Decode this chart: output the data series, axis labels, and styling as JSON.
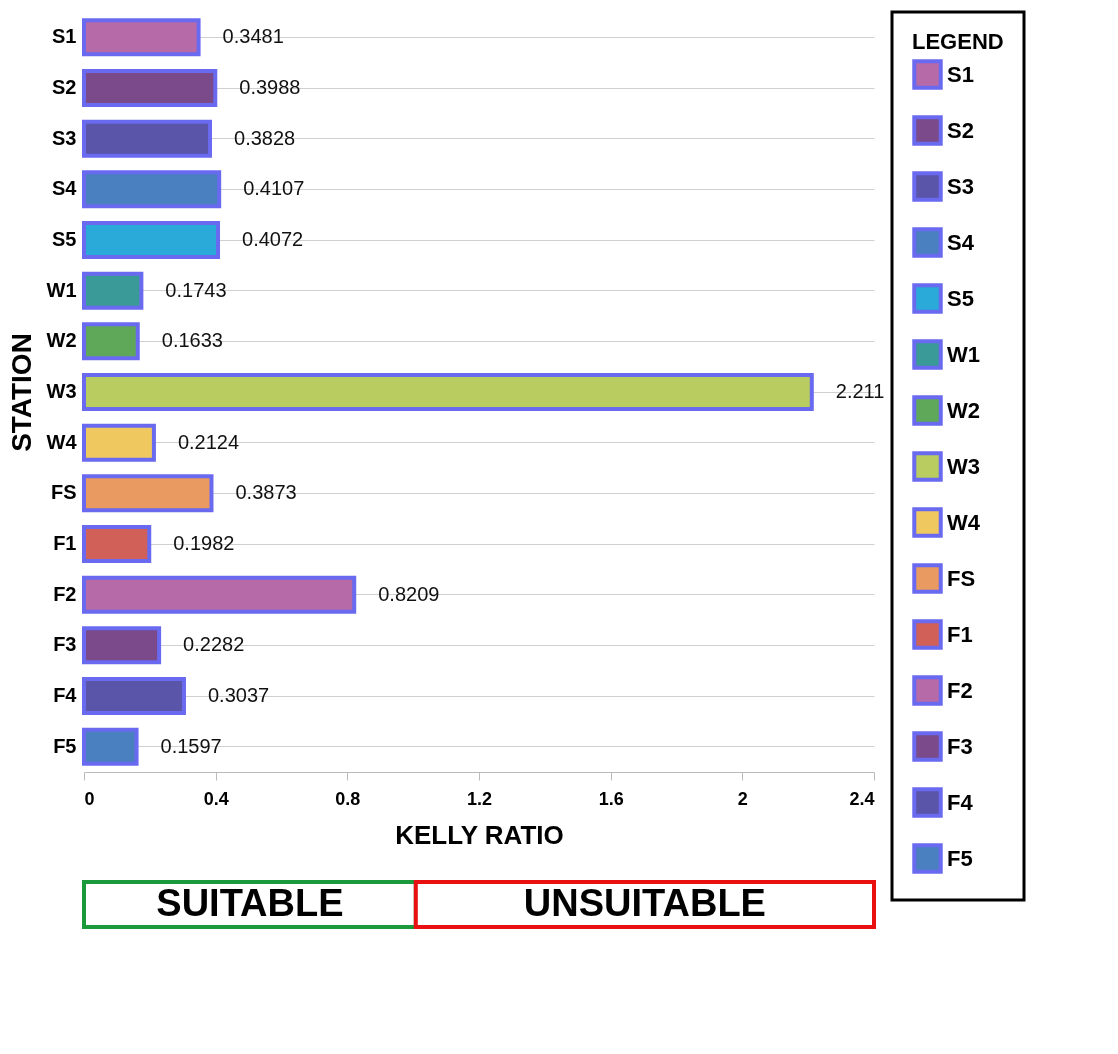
{
  "chart_data": {
    "type": "bar",
    "orientation": "horizontal",
    "xlabel": "KELLY RATIO",
    "ylabel": "STATION",
    "legend_title": "LEGEND",
    "categories": [
      "S1",
      "S2",
      "S3",
      "S4",
      "S5",
      "W1",
      "W2",
      "W3",
      "W4",
      "FS",
      "F1",
      "F2",
      "F3",
      "F4",
      "F5"
    ],
    "series": [
      {
        "name": "S1",
        "color": "#b76aa8",
        "values": [
          0.3481,
          null,
          null,
          null,
          null,
          null,
          null,
          null,
          null,
          null,
          null,
          null,
          null,
          null,
          null
        ]
      },
      {
        "name": "S2",
        "color": "#7a4a8a",
        "values": [
          null,
          0.3988,
          null,
          null,
          null,
          null,
          null,
          null,
          null,
          null,
          null,
          null,
          null,
          null,
          null
        ]
      },
      {
        "name": "S3",
        "color": "#5a55a8",
        "values": [
          null,
          null,
          0.3828,
          null,
          null,
          null,
          null,
          null,
          null,
          null,
          null,
          null,
          null,
          null,
          null
        ]
      },
      {
        "name": "S4",
        "color": "#4a7fc0",
        "values": [
          null,
          null,
          null,
          0.4107,
          null,
          null,
          null,
          null,
          null,
          null,
          null,
          null,
          null,
          null,
          null
        ]
      },
      {
        "name": "S5",
        "color": "#2aaad8",
        "values": [
          null,
          null,
          null,
          null,
          0.4072,
          null,
          null,
          null,
          null,
          null,
          null,
          null,
          null,
          null,
          null
        ]
      },
      {
        "name": "W1",
        "color": "#3a9a98",
        "values": [
          null,
          null,
          null,
          null,
          null,
          0.1743,
          null,
          null,
          null,
          null,
          null,
          null,
          null,
          null,
          null
        ]
      },
      {
        "name": "W2",
        "color": "#5fa85a",
        "values": [
          null,
          null,
          null,
          null,
          null,
          null,
          0.1633,
          null,
          null,
          null,
          null,
          null,
          null,
          null,
          null
        ]
      },
      {
        "name": "W3",
        "color": "#b8cc60",
        "values": [
          null,
          null,
          null,
          null,
          null,
          null,
          null,
          2.211,
          null,
          null,
          null,
          null,
          null,
          null,
          null
        ]
      },
      {
        "name": "W4",
        "color": "#f0c860",
        "values": [
          null,
          null,
          null,
          null,
          null,
          null,
          null,
          null,
          0.2124,
          null,
          null,
          null,
          null,
          null,
          null
        ]
      },
      {
        "name": "FS",
        "color": "#e89a60",
        "values": [
          null,
          null,
          null,
          null,
          null,
          null,
          null,
          null,
          null,
          0.3873,
          null,
          null,
          null,
          null,
          null
        ]
      },
      {
        "name": "F1",
        "color": "#d06058",
        "values": [
          null,
          null,
          null,
          null,
          null,
          null,
          null,
          null,
          null,
          null,
          0.1982,
          null,
          null,
          null,
          null
        ]
      },
      {
        "name": "F2",
        "color": "#b76aa8",
        "values": [
          null,
          null,
          null,
          null,
          null,
          null,
          null,
          null,
          null,
          null,
          null,
          0.8209,
          null,
          null,
          null
        ]
      },
      {
        "name": "F3",
        "color": "#7a4a8a",
        "values": [
          null,
          null,
          null,
          null,
          null,
          null,
          null,
          null,
          null,
          null,
          null,
          null,
          0.2282,
          null,
          null
        ]
      },
      {
        "name": "F4",
        "color": "#5a55a8",
        "values": [
          null,
          null,
          null,
          null,
          null,
          null,
          null,
          null,
          null,
          null,
          null,
          null,
          null,
          0.3037,
          null
        ]
      },
      {
        "name": "F5",
        "color": "#4a7fc0",
        "values": [
          null,
          null,
          null,
          null,
          null,
          null,
          null,
          null,
          null,
          null,
          null,
          null,
          null,
          null,
          0.1597
        ]
      }
    ],
    "xlim": [
      0,
      2.4
    ],
    "xticks": [
      0,
      0.4,
      0.8,
      1.2,
      1.6,
      2,
      2.4
    ],
    "data_labels": true,
    "grid": "y",
    "legend": "right",
    "annotations": [
      "SUITABLE",
      "UNSUITABLE"
    ]
  }
}
